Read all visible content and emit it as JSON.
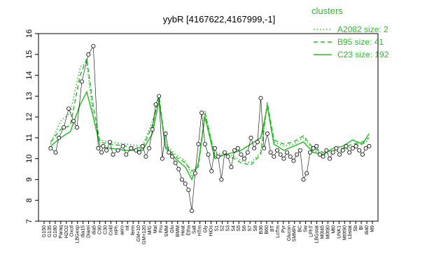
{
  "chart_data": {
    "type": "line",
    "title": "yybR [4167622,4167999,-1]",
    "xlabel": "",
    "ylabel": "",
    "ylim": [
      7,
      16
    ],
    "yticks": [
      7,
      8,
      9,
      10,
      11,
      12,
      13,
      14,
      15,
      16
    ],
    "grid": false,
    "legend": {
      "title": "clusters",
      "placement": "top-right",
      "entries": [
        {
          "label": "A2082 size: 2",
          "style": "dotted"
        },
        {
          "label": "B95 size: 41",
          "style": "dashed"
        },
        {
          "label": "C23 size: 192",
          "style": "solid"
        }
      ]
    },
    "colors": {
      "series": "#2db82d",
      "points": "#000000"
    },
    "x_tick_labels": [
      "G150",
      "G135",
      "G180",
      "Paraq",
      "H2O2",
      "Oxctl",
      "LBGexp",
      "dia15",
      "Diami",
      "dia5",
      "C90",
      "C30",
      "Cold",
      "HPh",
      "aero",
      "nit",
      "ferm",
      "GM+10",
      "GM+120",
      "M/G",
      "Mal",
      "Fru",
      "SMM",
      "Glu",
      "BMM",
      "Heat",
      "Etha",
      "Salt",
      "HTm",
      "Gly",
      "HiOs",
      "S1",
      "S2",
      "S3",
      "S4",
      "S5",
      "S6",
      "S7",
      "S8",
      "B36",
      "B60",
      "BT",
      "LoTm",
      "Pyr",
      "Glucon",
      "SMMPr",
      "BC",
      "Sw",
      "LPhT",
      "LBGstat",
      "M0t45",
      "M0t90",
      "Mt0",
      "UNK1",
      "Mt0t90",
      "Lbstat",
      "Sb",
      "BI",
      "dia0",
      "M9"
    ],
    "marker_x": [
      0.02,
      0.035,
      0.045,
      0.06,
      0.075,
      0.09,
      0.1,
      0.115,
      0.135,
      0.15,
      0.165,
      0.175,
      0.18,
      0.19,
      0.2,
      0.21,
      0.225,
      0.24,
      0.25,
      0.265,
      0.28,
      0.29,
      0.3,
      0.31,
      0.32,
      0.33,
      0.34,
      0.35,
      0.36,
      0.37,
      0.38,
      0.39,
      0.4,
      0.41,
      0.42,
      0.43,
      0.44,
      0.45,
      0.46,
      0.47,
      0.48,
      0.49,
      0.5,
      0.51,
      0.52,
      0.53,
      0.54,
      0.55,
      0.56,
      0.57,
      0.58,
      0.59,
      0.6,
      0.61,
      0.62,
      0.63,
      0.64,
      0.65,
      0.66,
      0.67,
      0.68,
      0.69,
      0.7,
      0.71,
      0.72,
      0.73,
      0.74,
      0.75,
      0.76,
      0.77,
      0.78,
      0.79,
      0.8,
      0.81,
      0.82,
      0.83,
      0.84,
      0.85,
      0.86,
      0.87,
      0.88,
      0.89,
      0.9,
      0.91,
      0.92,
      0.93,
      0.94,
      0.95,
      0.96,
      0.97,
      0.98,
      0.99
    ],
    "marker_y": [
      10.5,
      10.3,
      11.0,
      11.5,
      12.4,
      11.8,
      11.5,
      13.7,
      15.0,
      15.4,
      10.5,
      10.3,
      10.6,
      10.4,
      10.8,
      10.2,
      10.4,
      10.6,
      10.2,
      10.5,
      10.4,
      10.3,
      10.6,
      10.1,
      10.5,
      11.4,
      12.6,
      13.0,
      10.0,
      11.2,
      10.3,
      10.1,
      9.8,
      9.5,
      9.0,
      8.8,
      8.5,
      7.5,
      9.3,
      10.7,
      12.2,
      10.7,
      10.2,
      9.4,
      10.5,
      10.1,
      9.0,
      10.3,
      10.1,
      9.6,
      10.4,
      10.5,
      10.2,
      10.0,
      10.3,
      11.0,
      10.5,
      10.8,
      12.9,
      10.5,
      11.2,
      10.3,
      10.1,
      10.4,
      10.2,
      10.0,
      10.3,
      10.1,
      9.9,
      10.2,
      10.4,
      9.0,
      9.3,
      10.3,
      10.5,
      10.6,
      10.2,
      10.1,
      10.4,
      10.0,
      10.3,
      10.5,
      10.2,
      10.4,
      10.6,
      10.3,
      10.5,
      10.6,
      10.4,
      10.2,
      10.5,
      10.6
    ],
    "series": [
      {
        "style": "solid",
        "x": [
          0.02,
          0.05,
          0.08,
          0.11,
          0.13,
          0.15,
          0.17,
          0.2,
          0.25,
          0.3,
          0.33,
          0.35,
          0.37,
          0.4,
          0.43,
          0.45,
          0.47,
          0.49,
          0.52,
          0.55,
          0.58,
          0.6,
          0.63,
          0.66,
          0.68,
          0.7,
          0.73,
          0.76,
          0.79,
          0.82,
          0.85,
          0.88,
          0.91,
          0.94,
          0.97,
          0.99
        ],
        "y": [
          10.6,
          11.0,
          11.3,
          12.6,
          13.2,
          12.0,
          10.6,
          10.5,
          10.4,
          10.4,
          11.2,
          12.8,
          10.5,
          10.0,
          9.6,
          9.0,
          9.8,
          12.0,
          10.0,
          10.2,
          10.3,
          10.4,
          10.7,
          11.0,
          12.5,
          10.7,
          10.4,
          10.6,
          10.8,
          10.3,
          10.2,
          10.5,
          10.6,
          10.9,
          10.7,
          11.2
        ]
      },
      {
        "style": "dashed",
        "x": [
          0.02,
          0.05,
          0.08,
          0.11,
          0.13,
          0.15,
          0.17,
          0.2,
          0.25,
          0.3,
          0.33,
          0.35,
          0.37,
          0.4,
          0.43,
          0.45,
          0.47,
          0.49,
          0.52,
          0.55,
          0.58,
          0.6,
          0.63,
          0.66,
          0.68,
          0.7,
          0.73,
          0.76,
          0.79,
          0.82,
          0.85,
          0.88,
          0.91,
          0.94,
          0.97,
          0.99
        ],
        "y": [
          10.8,
          11.4,
          11.6,
          14.0,
          14.8,
          12.5,
          10.8,
          10.7,
          10.6,
          10.5,
          11.6,
          13.0,
          10.6,
          10.1,
          9.8,
          9.4,
          9.6,
          12.2,
          10.1,
          10.2,
          10.0,
          9.8,
          9.7,
          10.2,
          12.7,
          10.9,
          10.7,
          10.8,
          11.1,
          10.5,
          10.3,
          10.4,
          10.5,
          10.7,
          10.8,
          11.0
        ]
      },
      {
        "style": "dotted",
        "x": [
          0.02,
          0.05,
          0.08,
          0.11,
          0.13,
          0.15,
          0.17,
          0.2,
          0.25,
          0.3,
          0.33,
          0.35,
          0.37,
          0.4,
          0.43,
          0.45,
          0.47,
          0.49,
          0.52,
          0.55,
          0.58,
          0.6,
          0.63,
          0.66,
          0.68,
          0.7,
          0.73,
          0.76,
          0.79,
          0.82,
          0.85,
          0.88,
          0.91,
          0.94,
          0.97,
          0.99
        ],
        "y": [
          10.7,
          11.8,
          12.2,
          14.4,
          14.6,
          12.0,
          10.9,
          10.8,
          10.7,
          10.6,
          11.8,
          12.9,
          10.7,
          10.2,
          9.9,
          9.2,
          9.7,
          12.3,
          10.2,
          10.3,
          10.1,
          9.9,
          9.8,
          10.3,
          12.6,
          10.8,
          10.6,
          10.7,
          11.0,
          10.4,
          10.2,
          10.3,
          10.4,
          10.6,
          10.7,
          10.9
        ]
      }
    ]
  }
}
